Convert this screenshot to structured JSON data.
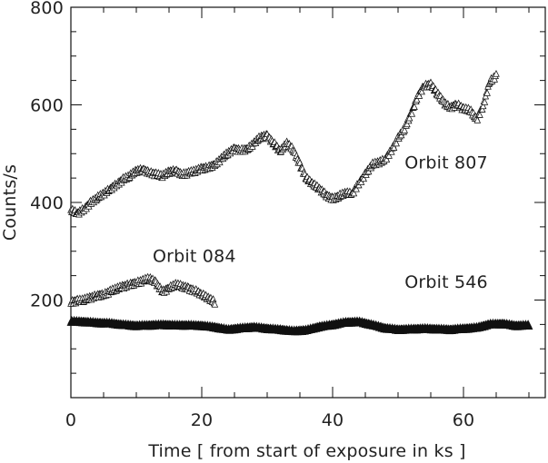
{
  "chart_data": {
    "type": "scatter",
    "xlabel": "Time [ from start of exposure in ks ]",
    "ylabel": "Counts/s",
    "xlim": [
      0,
      72.5
    ],
    "ylim": [
      0,
      800
    ],
    "x_ticks": [
      0,
      20,
      40,
      60
    ],
    "y_ticks": [
      200,
      400,
      600,
      800
    ],
    "marker": "triangle",
    "series": [
      {
        "name": "Orbit 807",
        "points": [
          [
            0,
            385
          ],
          [
            1,
            378
          ],
          [
            2,
            387
          ],
          [
            3,
            400
          ],
          [
            4,
            410
          ],
          [
            5,
            418
          ],
          [
            6,
            428
          ],
          [
            7,
            438
          ],
          [
            8,
            448
          ],
          [
            9,
            455
          ],
          [
            10,
            465
          ],
          [
            11,
            468
          ],
          [
            12,
            462
          ],
          [
            13,
            458
          ],
          [
            14,
            455
          ],
          [
            15,
            463
          ],
          [
            16,
            466
          ],
          [
            17,
            458
          ],
          [
            18,
            461
          ],
          [
            19,
            465
          ],
          [
            20,
            470
          ],
          [
            21,
            473
          ],
          [
            22,
            478
          ],
          [
            23,
            490
          ],
          [
            24,
            502
          ],
          [
            25,
            510
          ],
          [
            26,
            508
          ],
          [
            27,
            510
          ],
          [
            28,
            522
          ],
          [
            29,
            535
          ],
          [
            30,
            537
          ],
          [
            31,
            522
          ],
          [
            32,
            505
          ],
          [
            33,
            522
          ],
          [
            34,
            508
          ],
          [
            35,
            478
          ],
          [
            36,
            450
          ],
          [
            37,
            438
          ],
          [
            38,
            428
          ],
          [
            39,
            416
          ],
          [
            40,
            408
          ],
          [
            41,
            414
          ],
          [
            42,
            420
          ],
          [
            43,
            418
          ],
          [
            44,
            440
          ],
          [
            45,
            458
          ],
          [
            46,
            478
          ],
          [
            47,
            482
          ],
          [
            48,
            488
          ],
          [
            49,
            508
          ],
          [
            50,
            532
          ],
          [
            51,
            552
          ],
          [
            52,
            582
          ],
          [
            53,
            618
          ],
          [
            54,
            640
          ],
          [
            55,
            642
          ],
          [
            56,
            624
          ],
          [
            57,
            605
          ],
          [
            58,
            595
          ],
          [
            59,
            602
          ],
          [
            60,
            592
          ],
          [
            61,
            590
          ],
          [
            62,
            570
          ],
          [
            63,
            598
          ],
          [
            64,
            648
          ],
          [
            65,
            660
          ]
        ]
      },
      {
        "name": "Orbit 084",
        "points": [
          [
            0,
            197
          ],
          [
            1,
            199
          ],
          [
            2,
            201
          ],
          [
            3,
            205
          ],
          [
            4,
            210
          ],
          [
            5,
            212
          ],
          [
            6,
            218
          ],
          [
            7,
            224
          ],
          [
            8,
            228
          ],
          [
            9,
            233
          ],
          [
            10,
            236
          ],
          [
            11,
            240
          ],
          [
            12,
            245
          ],
          [
            13,
            236
          ],
          [
            14,
            218
          ],
          [
            15,
            225
          ],
          [
            16,
            232
          ],
          [
            17,
            229
          ],
          [
            18,
            224
          ],
          [
            19,
            220
          ],
          [
            20,
            212
          ],
          [
            21,
            204
          ],
          [
            22,
            196
          ]
        ]
      },
      {
        "name": "Orbit 546",
        "points": [
          [
            0,
            157
          ],
          [
            2,
            156
          ],
          [
            4,
            154
          ],
          [
            6,
            153
          ],
          [
            8,
            150
          ],
          [
            10,
            148
          ],
          [
            12,
            149
          ],
          [
            14,
            150
          ],
          [
            16,
            149
          ],
          [
            18,
            149
          ],
          [
            20,
            148
          ],
          [
            22,
            145
          ],
          [
            24,
            140
          ],
          [
            26,
            143
          ],
          [
            28,
            145
          ],
          [
            30,
            142
          ],
          [
            32,
            140
          ],
          [
            34,
            137
          ],
          [
            36,
            139
          ],
          [
            38,
            146
          ],
          [
            40,
            150
          ],
          [
            42,
            155
          ],
          [
            44,
            156
          ],
          [
            46,
            150
          ],
          [
            48,
            143
          ],
          [
            50,
            140
          ],
          [
            52,
            141
          ],
          [
            54,
            142
          ],
          [
            56,
            141
          ],
          [
            58,
            140
          ],
          [
            60,
            142
          ],
          [
            62,
            144
          ],
          [
            64,
            151
          ],
          [
            66,
            152
          ],
          [
            68,
            148
          ],
          [
            70,
            149
          ]
        ]
      }
    ],
    "annotations": [
      {
        "text": "Orbit 807",
        "x": 51,
        "y": 470
      },
      {
        "text": "Orbit 084",
        "x": 12.5,
        "y": 278
      },
      {
        "text": "Orbit 546",
        "x": 51,
        "y": 225
      }
    ]
  }
}
